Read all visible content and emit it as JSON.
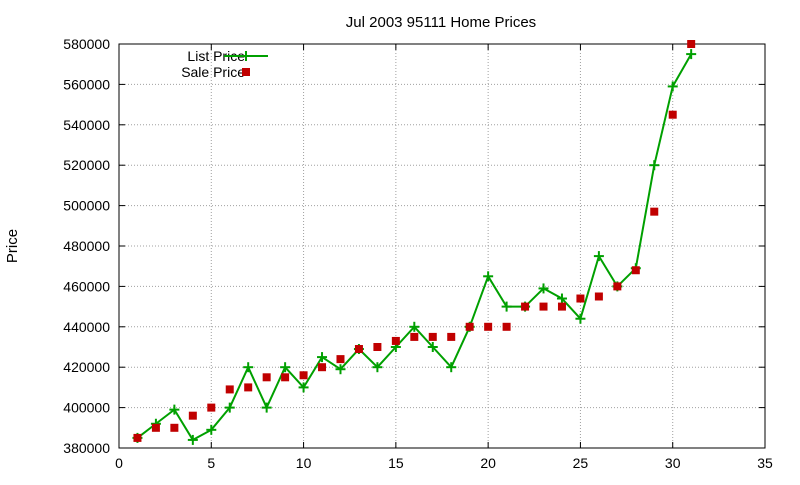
{
  "chart_data": {
    "type": "line",
    "title": "Jul 2003 95111 Home Prices",
    "xlabel": "",
    "ylabel": "Price",
    "xlim": [
      0,
      35
    ],
    "ylim": [
      380000,
      580000
    ],
    "xticks": [
      0,
      5,
      10,
      15,
      20,
      25,
      30,
      35
    ],
    "yticks": [
      380000,
      400000,
      420000,
      440000,
      460000,
      480000,
      500000,
      520000,
      540000,
      560000,
      580000
    ],
    "grid": true,
    "legend_position": "top-left",
    "series": [
      {
        "name": "List Price",
        "style": "line-points",
        "marker": "plus",
        "color": "#00a000",
        "x": [
          1,
          2,
          3,
          4,
          5,
          6,
          7,
          8,
          9,
          10,
          11,
          12,
          13,
          14,
          15,
          16,
          17,
          18,
          19,
          20,
          21,
          22,
          23,
          24,
          25,
          26,
          27,
          28,
          29,
          30,
          31
        ],
        "y": [
          385000,
          392000,
          399000,
          384000,
          389000,
          400000,
          420000,
          400000,
          420000,
          410000,
          425000,
          419000,
          429000,
          420000,
          430000,
          440000,
          430000,
          420000,
          440000,
          465000,
          450000,
          450000,
          459000,
          454000,
          444000,
          475000,
          460000,
          469000,
          520000,
          559000,
          575000
        ]
      },
      {
        "name": "Sale Price",
        "style": "points",
        "marker": "square",
        "color": "#c00000",
        "x": [
          1,
          2,
          3,
          4,
          5,
          6,
          7,
          8,
          9,
          10,
          11,
          12,
          13,
          14,
          15,
          16,
          17,
          18,
          19,
          20,
          21,
          22,
          23,
          24,
          25,
          26,
          27,
          28,
          29,
          30,
          31
        ],
        "y": [
          385000,
          390000,
          390000,
          396000,
          400000,
          409000,
          410000,
          415000,
          415000,
          416000,
          420000,
          424000,
          429000,
          430000,
          433000,
          435000,
          435000,
          435000,
          440000,
          440000,
          440000,
          450000,
          450000,
          450000,
          454000,
          455000,
          460000,
          468000,
          497000,
          545000,
          580000
        ]
      }
    ]
  }
}
